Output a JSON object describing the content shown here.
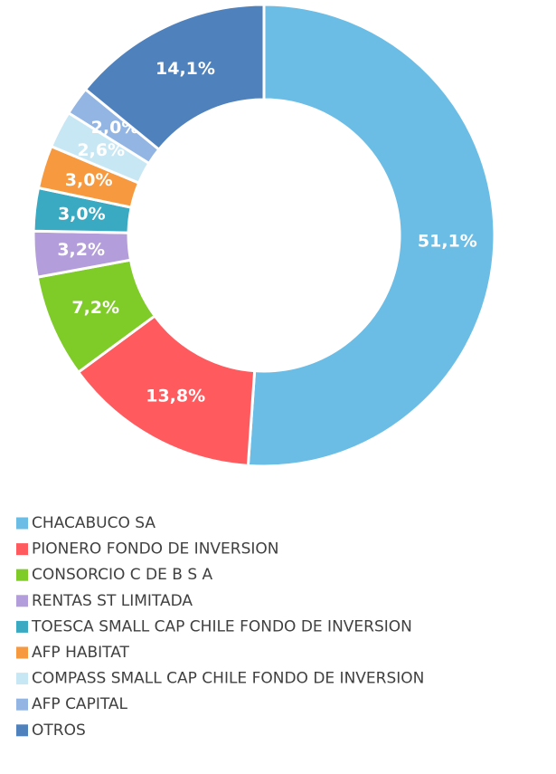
{
  "chart_data": {
    "type": "donut",
    "categories": [
      "CHACABUCO SA",
      "PIONERO FONDO DE INVERSION",
      "CONSORCIO C DE B  S A",
      "RENTAS ST LIMITADA",
      "TOESCA SMALL CAP CHILE FONDO DE INVERSION",
      "AFP HABITAT",
      "COMPASS SMALL CAP CHILE FONDO DE INVERSION",
      "AFP CAPITAL",
      "OTROS"
    ],
    "values": [
      51.1,
      13.8,
      7.2,
      3.2,
      3.0,
      3.0,
      2.6,
      2.0,
      14.1
    ],
    "value_labels": [
      "51,1%",
      "13,8%",
      "7,2%",
      "3,2%",
      "3,0%",
      "3,0%",
      "2,6%",
      "2,0%",
      "14,1%"
    ],
    "colors": [
      "#6bbde6",
      "#ff5a5e",
      "#7fcb28",
      "#b39ddb",
      "#3aa9c2",
      "#f7993f",
      "#c8e7f5",
      "#92b5e4",
      "#4f81bd"
    ],
    "legend": "bottom"
  }
}
